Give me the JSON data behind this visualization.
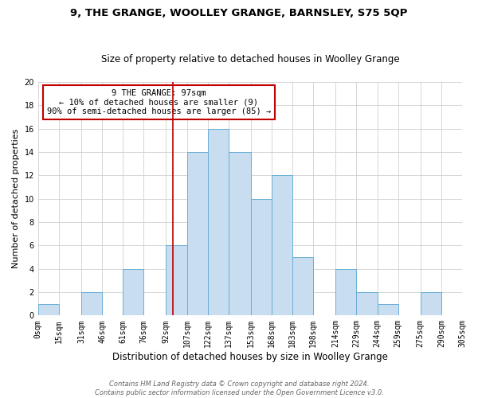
{
  "title": "9, THE GRANGE, WOOLLEY GRANGE, BARNSLEY, S75 5QP",
  "subtitle": "Size of property relative to detached houses in Woolley Grange",
  "xlabel": "Distribution of detached houses by size in Woolley Grange",
  "ylabel": "Number of detached properties",
  "bin_edges": [
    0,
    15,
    31,
    46,
    61,
    76,
    92,
    107,
    122,
    137,
    153,
    168,
    183,
    198,
    214,
    229,
    244,
    259,
    275,
    290,
    305
  ],
  "bin_labels": [
    "0sqm",
    "15sqm",
    "31sqm",
    "46sqm",
    "61sqm",
    "76sqm",
    "92sqm",
    "107sqm",
    "122sqm",
    "137sqm",
    "153sqm",
    "168sqm",
    "183sqm",
    "198sqm",
    "214sqm",
    "229sqm",
    "244sqm",
    "259sqm",
    "275sqm",
    "290sqm",
    "305sqm"
  ],
  "counts": [
    1,
    0,
    2,
    0,
    4,
    0,
    6,
    14,
    16,
    14,
    10,
    12,
    5,
    0,
    4,
    2,
    1,
    0,
    2,
    0
  ],
  "bar_color": "#c9ddf0",
  "bar_edge_color": "#6aaed6",
  "vline_x": 97,
  "vline_color": "#c00000",
  "annotation_line1": "9 THE GRANGE: 97sqm",
  "annotation_line2": "← 10% of detached houses are smaller (9)",
  "annotation_line3": "90% of semi-detached houses are larger (85) →",
  "annotation_box_color": "#ffffff",
  "annotation_box_edge_color": "#c00000",
  "footer_line1": "Contains HM Land Registry data © Crown copyright and database right 2024.",
  "footer_line2": "Contains public sector information licensed under the Open Government Licence v3.0.",
  "ylim": [
    0,
    20
  ],
  "yticks": [
    0,
    2,
    4,
    6,
    8,
    10,
    12,
    14,
    16,
    18,
    20
  ],
  "background_color": "#ffffff",
  "grid_color": "#d0d0d0",
  "title_fontsize": 9.5,
  "subtitle_fontsize": 8.5,
  "xlabel_fontsize": 8.5,
  "ylabel_fontsize": 8,
  "tick_fontsize": 7,
  "footer_fontsize": 6,
  "annotation_fontsize": 7.5
}
